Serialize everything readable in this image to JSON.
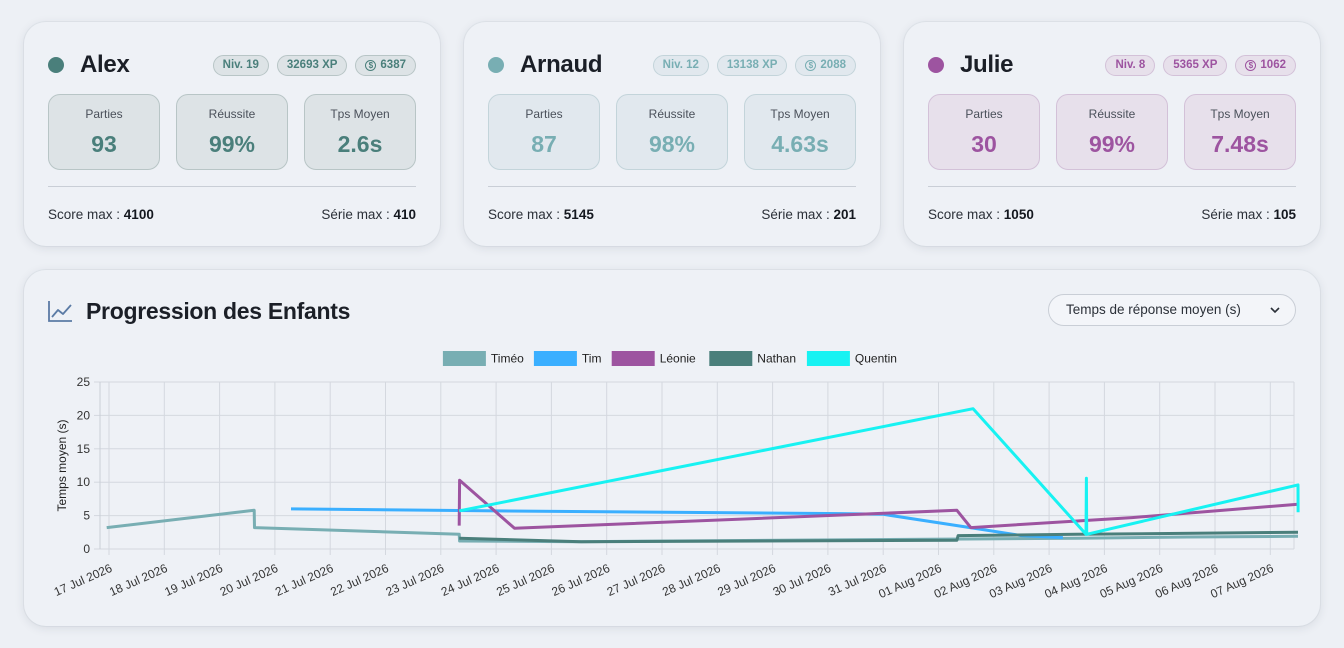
{
  "players": [
    {
      "name": "Alex",
      "color": "#4a7f7b",
      "tint": "#dde3e6",
      "border": "#b8c5c6",
      "level": "Niv. 19",
      "xp": "32693 XP",
      "coins": "6387",
      "stats": [
        {
          "label": "Parties",
          "value": "93"
        },
        {
          "label": "Réussite",
          "value": "99%"
        },
        {
          "label": "Tps Moyen",
          "value": "2.6s"
        }
      ],
      "score_label": "Score max :",
      "score": "4100",
      "streak_label": "Série max :",
      "streak": "410"
    },
    {
      "name": "Arnaud",
      "color": "#78aeb3",
      "tint": "#e1e8ee",
      "border": "#c3d4da",
      "level": "Niv. 12",
      "xp": "13138 XP",
      "coins": "2088",
      "stats": [
        {
          "label": "Parties",
          "value": "87"
        },
        {
          "label": "Réussite",
          "value": "98%"
        },
        {
          "label": "Tps Moyen",
          "value": "4.63s"
        }
      ],
      "score_label": "Score max :",
      "score": "5145",
      "streak_label": "Série max :",
      "streak": "201"
    },
    {
      "name": "Julie",
      "color": "#9d54a0",
      "tint": "#e7e0eb",
      "border": "#d3c1d8",
      "level": "Niv. 8",
      "xp": "5365 XP",
      "coins": "1062",
      "stats": [
        {
          "label": "Parties",
          "value": "30"
        },
        {
          "label": "Réussite",
          "value": "99%"
        },
        {
          "label": "Tps Moyen",
          "value": "7.48s"
        }
      ],
      "score_label": "Score max :",
      "score": "1050",
      "streak_label": "Série max :",
      "streak": "105"
    }
  ],
  "chart_panel": {
    "title": "Progression des Enfants",
    "select_value": "Temps de réponse moyen (s)",
    "icon": "line-chart-icon"
  },
  "chart_data": {
    "type": "line",
    "ylabel": "Temps moyen (s)",
    "xlabel": "",
    "ylim": [
      0,
      25
    ],
    "yticks": [
      0,
      5,
      10,
      15,
      20,
      25
    ],
    "grid": true,
    "legend_position": "top",
    "x_ticks": [
      "17 Jul 2026",
      "18 Jul 2026",
      "19 Jul 2026",
      "20 Jul 2026",
      "21 Jul 2026",
      "22 Jul 2026",
      "23 Jul 2026",
      "24 Jul 2026",
      "25 Jul 2026",
      "26 Jul 2026",
      "27 Jul 2026",
      "28 Jul 2026",
      "29 Jul 2026",
      "30 Jul 2026",
      "31 Jul 2026",
      "01 Aug 2026",
      "02 Aug 2026",
      "03 Aug 2026",
      "04 Aug 2026",
      "05 Aug 2026",
      "06 Aug 2026",
      "07 Aug 2026"
    ],
    "series": [
      {
        "name": "Timéo",
        "color": "#78aeb3",
        "points": [
          [
            "2026-07-16 23:00",
            3.2
          ],
          [
            "2026-07-19 15:00",
            5.8
          ],
          [
            "2026-07-19 15:10",
            3.2
          ],
          [
            "2026-07-23 08:00",
            2.2
          ],
          [
            "2026-07-23 08:10",
            1.2
          ],
          [
            "2026-07-25 12:00",
            1.1
          ],
          [
            "2026-08-01 12:00",
            1.5
          ],
          [
            "2026-08-03 12:00",
            1.6
          ],
          [
            "2026-08-05 12:00",
            1.8
          ],
          [
            "2026-08-07 12:00",
            1.9
          ]
        ]
      },
      {
        "name": "Tim",
        "color": "#3aafff",
        "points": [
          [
            "2026-07-20 07:00",
            6.0
          ],
          [
            "2026-07-24 00:00",
            5.7
          ],
          [
            "2026-07-30 06:00",
            5.3
          ],
          [
            "2026-07-31 00:00",
            5.2
          ],
          [
            "2026-08-01 12:00",
            3.3
          ],
          [
            "2026-08-02 12:00",
            2.0
          ],
          [
            "2026-08-03 06:00",
            1.7
          ]
        ]
      },
      {
        "name": "Léonie",
        "color": "#9d54a0",
        "points": [
          [
            "2026-07-23 08:00",
            3.5
          ],
          [
            "2026-07-23 08:10",
            10.3
          ],
          [
            "2026-07-24 08:00",
            3.1
          ],
          [
            "2026-08-01 08:00",
            5.8
          ],
          [
            "2026-08-01 14:00",
            3.2
          ],
          [
            "2026-08-04 12:00",
            4.7
          ],
          [
            "2026-08-07 12:00",
            6.7
          ]
        ]
      },
      {
        "name": "Nathan",
        "color": "#4a7f7b",
        "points": [
          [
            "2026-07-23 08:00",
            1.6
          ],
          [
            "2026-07-25 13:00",
            1.1
          ],
          [
            "2026-08-01 08:00",
            1.3
          ],
          [
            "2026-08-01 08:30",
            2.0
          ],
          [
            "2026-08-03 12:00",
            2.2
          ],
          [
            "2026-08-07 12:00",
            2.5
          ]
        ]
      },
      {
        "name": "Quentin",
        "color": "#17f2f2",
        "points": [
          [
            "2026-07-23 08:00",
            5.7
          ],
          [
            "2026-08-01 15:00",
            21.0
          ],
          [
            "2026-08-03 16:00",
            2.2
          ],
          [
            "2026-08-03 16:10",
            10.6
          ],
          [
            "2026-08-03 16:20",
            2.2
          ],
          [
            "2026-08-07 12:00",
            9.6
          ],
          [
            "2026-08-07 12:05",
            5.5
          ]
        ]
      }
    ]
  }
}
